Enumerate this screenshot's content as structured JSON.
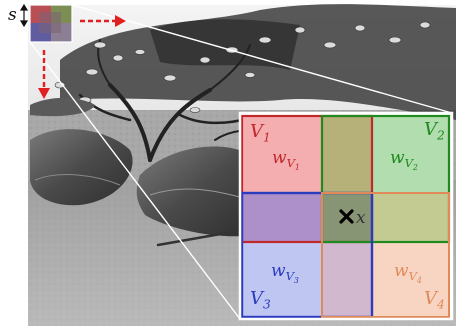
{
  "scale_label": "s",
  "cells": {
    "v1": {
      "name": "V",
      "sub": "1",
      "weight": "w",
      "weight_sub": "V",
      "weight_sub2": "1",
      "color": "#c0282b",
      "fill": "#f3a5a6"
    },
    "v2": {
      "name": "V",
      "sub": "2",
      "weight": "w",
      "weight_sub": "V",
      "weight_sub2": "2",
      "color": "#1f8a1f",
      "fill": "#a9d9a6"
    },
    "v3": {
      "name": "V",
      "sub": "3",
      "weight": "w",
      "weight_sub": "V",
      "weight_sub2": "3",
      "color": "#2a3bbd",
      "fill": "#b9c0f1"
    },
    "v4": {
      "name": "V",
      "sub": "4",
      "weight": "w",
      "weight_sub": "V",
      "weight_sub2": "4",
      "color": "#e08a5a",
      "fill": "#f7d0bb"
    }
  },
  "sample_point": {
    "label": "x",
    "marker": "×"
  },
  "colors": {
    "arrow": "#e02020",
    "zoom_lines": "#ffffff",
    "frame": "#ffffff"
  }
}
